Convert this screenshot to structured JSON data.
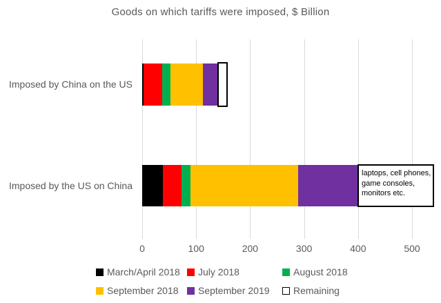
{
  "title": "Goods on which tariffs were imposed, $ Billion",
  "chart_data": {
    "type": "bar",
    "orientation": "horizontal",
    "stacked": true,
    "title": "Goods on which tariffs were imposed, $ Billion",
    "unit": "$ Billion",
    "categories": [
      "Imposed by China on the US",
      "Imposed by the US on China"
    ],
    "series": [
      {
        "name": "March/April 2018",
        "color": "#000000",
        "values": [
          3,
          38
        ]
      },
      {
        "name": "July 2018",
        "color": "#FF0000",
        "values": [
          34,
          35
        ]
      },
      {
        "name": "August 2018",
        "color": "#00B050",
        "values": [
          16,
          16
        ]
      },
      {
        "name": "September 2018",
        "color": "#FFC000",
        "values": [
          60,
          200
        ]
      },
      {
        "name": "September 2019",
        "color": "#7030A0",
        "values": [
          26,
          110
        ]
      },
      {
        "name": "Remaining",
        "color": "#FFFFFF",
        "border_color": "#000000",
        "values": [
          19,
          142
        ]
      }
    ],
    "annotation": {
      "text": "laptops, cell phones, game consoles, monitors etc.",
      "target": "Remaining segment of the US-on-China bar"
    },
    "xlabel": "",
    "ylabel": "",
    "x_ticks": [
      0,
      100,
      200,
      300,
      400,
      500
    ],
    "xlim": [
      0,
      550
    ],
    "grid": true,
    "legend_position": "bottom"
  },
  "colors": {
    "text": "#595959",
    "gridline": "#D9D9D9",
    "background": "#FFFFFF"
  }
}
